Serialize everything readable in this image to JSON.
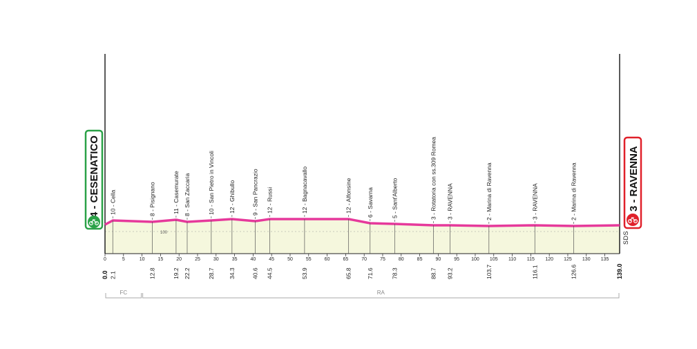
{
  "start": {
    "label": "4 - CESENATICO",
    "km_label": "0.0",
    "color": "#2aa147"
  },
  "finish": {
    "label": "3 - RAVENNA",
    "km_label": "139.0",
    "color": "#e0202a"
  },
  "sds_label": "SDS",
  "provinces": [
    {
      "code": "FC",
      "from_km": 0,
      "to_km": 10
    },
    {
      "code": "RA",
      "from_km": 10,
      "to_km": 139
    }
  ],
  "colors": {
    "profile_line": "#e6399b",
    "profile_fill": "#f5f7dd",
    "axis": "#222222",
    "grid": "#999999"
  },
  "chart_data": {
    "type": "area",
    "xlabel": "",
    "ylabel": "",
    "x_unit": "km",
    "xlim": [
      0,
      139
    ],
    "x_ticks": [
      0,
      5,
      10,
      15,
      20,
      25,
      30,
      35,
      40,
      45,
      50,
      55,
      60,
      65,
      70,
      75,
      80,
      85,
      90,
      95,
      100,
      105,
      110,
      115,
      120,
      125,
      130,
      135
    ],
    "elevation_reference_label": "100",
    "profile_km": [
      0,
      2.1,
      12.8,
      19.2,
      22.2,
      28.7,
      34.3,
      40.6,
      44.5,
      53.9,
      65.8,
      71.6,
      78.3,
      88.7,
      93.2,
      103.7,
      116.1,
      126.6,
      139.0
    ],
    "profile_alt": [
      4,
      10,
      8,
      11,
      8,
      10,
      12,
      9,
      12,
      12,
      12,
      6,
      5,
      3,
      3,
      2,
      3,
      2,
      3
    ],
    "waypoints": [
      {
        "km": 2.1,
        "km_label": "2.1",
        "alt": 10,
        "label": "10 - Cella"
      },
      {
        "km": 12.8,
        "km_label": "12.8",
        "alt": 8,
        "label": "8 - Pisignano"
      },
      {
        "km": 19.2,
        "km_label": "19.2",
        "alt": 11,
        "label": "11 - Casemurate"
      },
      {
        "km": 22.2,
        "km_label": "22.2",
        "alt": 8,
        "label": "8 - San Zaccaria"
      },
      {
        "km": 28.7,
        "km_label": "28.7",
        "alt": 10,
        "label": "10 - San Pietro in Vincoli"
      },
      {
        "km": 34.3,
        "km_label": "34.3",
        "alt": 12,
        "label": "12 - Ghibullo"
      },
      {
        "km": 40.6,
        "km_label": "40.6",
        "alt": 9,
        "label": "9 - San Pancrazio"
      },
      {
        "km": 44.5,
        "km_label": "44.5",
        "alt": 12,
        "label": "12 - Russi"
      },
      {
        "km": 53.9,
        "km_label": "53.9",
        "alt": 12,
        "label": "12 - Bagnacavallo"
      },
      {
        "km": 65.8,
        "km_label": "65.8",
        "alt": 12,
        "label": "12 - Alfonsine"
      },
      {
        "km": 71.6,
        "km_label": "71.6",
        "alt": 6,
        "label": "6 - Savarna"
      },
      {
        "km": 78.3,
        "km_label": "78.3",
        "alt": 5,
        "label": "5 - Sant'Alberto"
      },
      {
        "km": 88.7,
        "km_label": "88.7",
        "alt": 3,
        "label": "3 - Rotatoria con ss.309 Romea"
      },
      {
        "km": 93.2,
        "km_label": "93.2",
        "alt": 3,
        "label": "3 - RAVENNA"
      },
      {
        "km": 103.7,
        "km_label": "103.7",
        "alt": 2,
        "label": "2 - Marina di Ravenna"
      },
      {
        "km": 116.1,
        "km_label": "116.1",
        "alt": 3,
        "label": "3 - RAVENNA"
      },
      {
        "km": 126.6,
        "km_label": "126.6",
        "alt": 2,
        "label": "2 - Marina di Ravenna"
      }
    ]
  }
}
